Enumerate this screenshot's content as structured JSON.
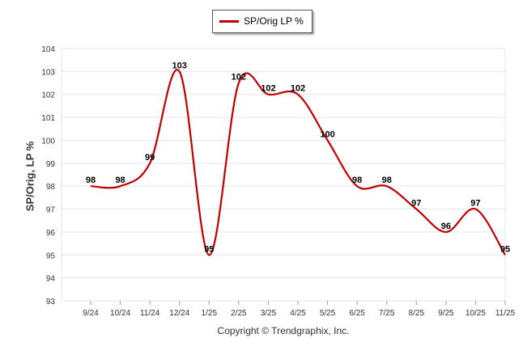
{
  "legend": {
    "label": "SP/Orig LP %",
    "color": "#c00000"
  },
  "copyright": "Copyright © Trendgraphix, Inc.",
  "chart_data": {
    "type": "line",
    "ylabel": "SP/Orig, LP %",
    "xlabel": "",
    "ylim": [
      93,
      104
    ],
    "yticks": [
      93,
      94,
      95,
      96,
      97,
      98,
      99,
      100,
      101,
      102,
      103,
      104
    ],
    "grid": true,
    "legend_position": "top-center",
    "categories": [
      "9/24",
      "10/24",
      "11/24",
      "12/24",
      "1/25",
      "2/25",
      "3/25",
      "4/25",
      "5/25",
      "6/25",
      "7/25",
      "8/25",
      "9/25",
      "10/25",
      "11/25"
    ],
    "series": [
      {
        "name": "SP/Orig LP %",
        "color": "#c00000",
        "values": [
          98,
          98,
          99,
          103,
          95,
          102.5,
          102,
          102,
          100,
          98,
          98,
          97,
          96,
          97,
          95
        ],
        "labels": [
          "98",
          "98",
          "99",
          "103",
          "95",
          "102",
          "102",
          "102",
          "100",
          "98",
          "98",
          "97",
          "96",
          "97",
          "95"
        ]
      }
    ]
  }
}
